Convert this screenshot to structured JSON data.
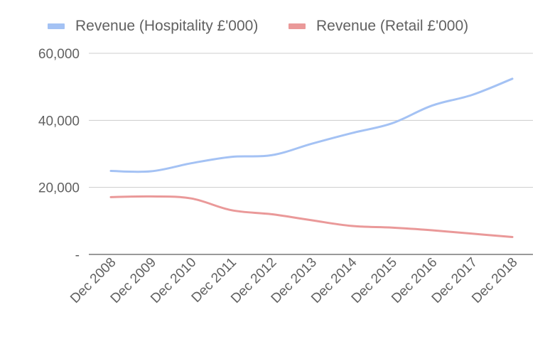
{
  "chart_data": {
    "type": "line",
    "title": "",
    "xlabel": "",
    "ylabel": "",
    "categories": [
      "Dec 2008",
      "Dec 2009",
      "Dec 2010",
      "Dec 2011",
      "Dec 2012",
      "Dec 2013",
      "Dec 2014",
      "Dec 2015",
      "Dec 2016",
      "Dec 2017",
      "Dec 2018"
    ],
    "series": [
      {
        "name": "Revenue (Hospitality £'000)",
        "color": "#a4c2f4",
        "values": [
          24900,
          24800,
          27200,
          29100,
          29600,
          33000,
          36200,
          39100,
          44400,
          47600,
          52400
        ]
      },
      {
        "name": "Revenue (Retail £'000)",
        "color": "#ea9999",
        "values": [
          17100,
          17300,
          16700,
          13200,
          12000,
          10200,
          8500,
          8000,
          7200,
          6200,
          5200
        ]
      }
    ],
    "ylim": [
      0,
      60000
    ],
    "yticks": [
      0,
      20000,
      40000,
      60000
    ],
    "ytick_labels": [
      "-",
      "20,000",
      "40,000",
      "60,000"
    ],
    "grid": true,
    "legend": "top"
  }
}
